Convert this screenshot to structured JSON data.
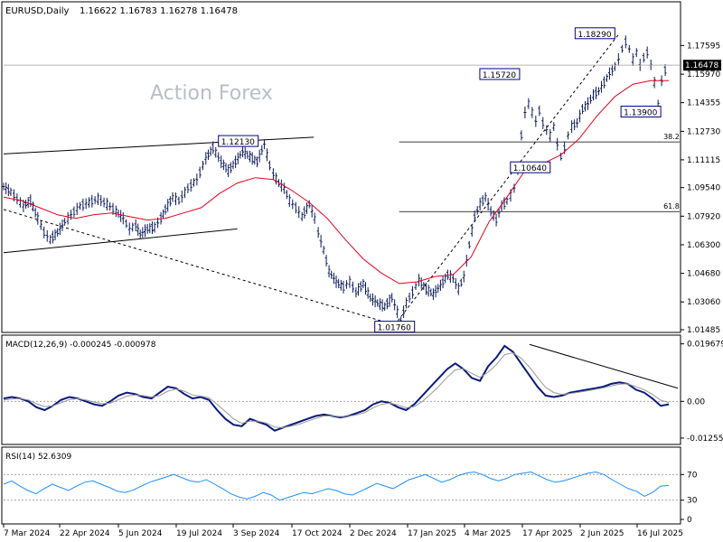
{
  "header": {
    "symbol": "EURUSD,Daily",
    "ohlc": "1.16622 1.16783 1.16278 1.16478"
  },
  "watermark": "Action Forex",
  "chart_data": [
    {
      "type": "candlestick",
      "title": "EURUSD,Daily 1.16622 1.16783 1.16278 1.16478",
      "ylim": [
        1.01485,
        1.1915
      ],
      "y_ticks": [
        "1.17595",
        "1.15970",
        "1.14355",
        "1.12730",
        "1.11115",
        "1.09540",
        "1.07920",
        "1.06300",
        "1.04680",
        "1.03060",
        "1.01485"
      ],
      "current_price_label": "1.16478",
      "x_ticks": [
        "7 Mar 2024",
        "22 Apr 2024",
        "5 Jun 2024",
        "19 Jul 2024",
        "3 Sep 2024",
        "17 Oct 2024",
        "2 Dec 2024",
        "17 Jan 2025",
        "4 Mar 2025",
        "17 Apr 2025",
        "2 Jun 2025",
        "16 Jul 2025"
      ],
      "price_series": {
        "x": [
          0,
          8,
          15,
          22,
          30,
          38,
          45,
          52,
          60,
          68,
          75,
          85,
          95,
          105,
          115,
          125,
          133,
          140,
          147,
          152,
          160,
          168,
          175,
          180,
          188,
          195,
          205,
          215,
          225,
          233,
          242,
          250,
          258,
          266,
          274,
          282,
          290,
          296,
          300,
          306,
          312,
          318,
          325,
          332,
          340,
          346,
          350,
          356,
          362,
          370,
          378,
          385,
          392,
          400,
          408,
          416,
          424,
          432,
          438,
          442,
          448,
          455,
          462,
          470,
          478,
          486,
          494,
          500,
          506,
          512,
          518,
          524,
          530,
          536,
          542,
          548,
          554,
          560,
          564,
          568,
          572,
          576,
          580,
          584,
          588,
          592,
          596,
          600,
          604,
          608,
          612,
          616,
          620,
          624,
          628,
          632,
          638,
          644,
          650,
          656,
          662,
          668,
          674,
          680,
          684,
          688,
          692,
          696,
          700,
          704,
          708,
          712,
          716,
          720,
          724,
          728,
          732,
          736,
          740
        ],
        "close": [
          1.096,
          1.093,
          1.089,
          1.085,
          1.088,
          1.078,
          1.07,
          1.066,
          1.07,
          1.076,
          1.08,
          1.085,
          1.087,
          1.089,
          1.086,
          1.082,
          1.078,
          1.072,
          1.074,
          1.069,
          1.072,
          1.073,
          1.078,
          1.083,
          1.09,
          1.088,
          1.095,
          1.1,
          1.112,
          1.118,
          1.11,
          1.105,
          1.11,
          1.116,
          1.113,
          1.11,
          1.12,
          1.108,
          1.103,
          1.098,
          1.095,
          1.088,
          1.084,
          1.079,
          1.086,
          1.078,
          1.07,
          1.06,
          1.048,
          1.042,
          1.039,
          1.042,
          1.036,
          1.041,
          1.033,
          1.03,
          1.028,
          1.033,
          1.025,
          1.02,
          1.03,
          1.036,
          1.043,
          1.038,
          1.035,
          1.04,
          1.046,
          1.044,
          1.038,
          1.045,
          1.063,
          1.079,
          1.086,
          1.09,
          1.082,
          1.077,
          1.085,
          1.088,
          1.091,
          1.095,
          1.106,
          1.125,
          1.138,
          1.143,
          1.138,
          1.133,
          1.139,
          1.132,
          1.128,
          1.125,
          1.13,
          1.12,
          1.113,
          1.118,
          1.125,
          1.13,
          1.132,
          1.14,
          1.143,
          1.148,
          1.15,
          1.155,
          1.16,
          1.164,
          1.168,
          1.174,
          1.178,
          1.174,
          1.168,
          1.172,
          1.165,
          1.169,
          1.172,
          1.165,
          1.155,
          1.142,
          1.156,
          1.162,
          1.1648
        ]
      },
      "ma_series": {
        "x": [
          0,
          20,
          40,
          60,
          80,
          100,
          120,
          140,
          160,
          180,
          200,
          220,
          240,
          260,
          280,
          300,
          320,
          340,
          360,
          380,
          400,
          420,
          440,
          460,
          480,
          500,
          520,
          540,
          560,
          580,
          600,
          620,
          640,
          660,
          680,
          700,
          720,
          740
        ],
        "values": [
          1.09,
          1.088,
          1.084,
          1.08,
          1.078,
          1.08,
          1.081,
          1.079,
          1.077,
          1.078,
          1.081,
          1.084,
          1.092,
          1.098,
          1.101,
          1.1,
          1.094,
          1.087,
          1.078,
          1.066,
          1.055,
          1.047,
          1.041,
          1.042,
          1.045,
          1.046,
          1.056,
          1.076,
          1.09,
          1.105,
          1.109,
          1.114,
          1.123,
          1.136,
          1.147,
          1.154,
          1.156,
          1.156
        ]
      },
      "labels": [
        {
          "text": "1.18290",
          "x": 685,
          "price": 1.1829
        },
        {
          "text": "1.15720",
          "x": 575,
          "price": 1.1572
        },
        {
          "text": "1.13900",
          "x": 725,
          "price": 1.139
        },
        {
          "text": "1.12130",
          "x": 245,
          "price": 1.1213
        },
        {
          "text": "1.10640",
          "x": 600,
          "price": 1.1064
        },
        {
          "text": "1.01760",
          "x": 435,
          "price": 1.0176
        }
      ],
      "fibonacci": [
        {
          "text": "38.2",
          "price": 1.1213
        },
        {
          "text": "61.8",
          "price": 1.0818
        }
      ]
    },
    {
      "type": "line",
      "title": "MACD(12,26,9) -0.000245 -0.000978",
      "ylim": [
        -0.0135,
        0.0205
      ],
      "y_ticks": [
        "0.019679",
        "0.00",
        "-0.012552"
      ],
      "y_marker": "0.00",
      "series": [
        {
          "values": [
            0.001,
            0.0015,
            0.001,
            0.0,
            -0.002,
            -0.003,
            -0.0015,
            0.0005,
            0.0015,
            0.001,
            0.0,
            -0.001,
            -0.0015,
            0.0,
            0.002,
            0.003,
            0.0025,
            0.0015,
            0.001,
            0.003,
            0.005,
            0.0045,
            0.0025,
            0.001,
            0.0015,
            0.0005,
            -0.003,
            -0.006,
            -0.008,
            -0.0085,
            -0.006,
            -0.007,
            -0.008,
            -0.01,
            -0.009,
            -0.008,
            -0.007,
            -0.006,
            -0.005,
            -0.0045,
            -0.005,
            -0.0055,
            -0.005,
            -0.004,
            -0.003,
            -0.001,
            0.0,
            -0.0005,
            -0.002,
            -0.003,
            -0.001,
            0.002,
            0.005,
            0.008,
            0.011,
            0.013,
            0.011,
            0.008,
            0.007,
            0.012,
            0.015,
            0.019,
            0.017,
            0.013,
            0.009,
            0.005,
            0.002,
            0.0015,
            0.002,
            0.003,
            0.0035,
            0.004,
            0.0045,
            0.005,
            0.006,
            0.0065,
            0.006,
            0.004,
            0.003,
            0.001,
            -0.0015,
            -0.001
          ]
        },
        {
          "values": [
            0.0005,
            0.0008,
            0.001,
            0.0005,
            -0.0008,
            -0.0018,
            -0.0015,
            -0.0005,
            0.0006,
            0.0009,
            0.0005,
            -0.0002,
            -0.0008,
            -0.0006,
            0.0006,
            0.0018,
            0.0022,
            0.002,
            0.0015,
            0.002,
            0.0035,
            0.0042,
            0.0035,
            0.0022,
            0.0018,
            0.0012,
            -0.001,
            -0.0035,
            -0.006,
            -0.0075,
            -0.0068,
            -0.0068,
            -0.0074,
            -0.0088,
            -0.009,
            -0.0085,
            -0.0078,
            -0.0068,
            -0.0058,
            -0.005,
            -0.005,
            -0.0052,
            -0.0051,
            -0.0046,
            -0.0038,
            -0.0022,
            -0.001,
            -0.0006,
            -0.0012,
            -0.0022,
            -0.0018,
            0.0,
            0.0025,
            0.0052,
            0.0082,
            0.0108,
            0.0112,
            0.0096,
            0.0082,
            0.01,
            0.0126,
            0.016,
            0.0166,
            0.0148,
            0.0118,
            0.0082,
            0.0048,
            0.003,
            0.0024,
            0.0027,
            0.0031,
            0.0036,
            0.0041,
            0.0046,
            0.0053,
            0.0059,
            0.006,
            0.005,
            0.004,
            0.0024,
            0.0004,
            -0.0004
          ]
        }
      ]
    },
    {
      "type": "line",
      "title": "RSI(14) 52.6309",
      "ylim": [
        0,
        100
      ],
      "y_ticks": [
        "70",
        "30",
        "0"
      ],
      "levels": [
        70,
        30
      ],
      "series": [
        {
          "values": [
            55,
            60,
            52,
            45,
            40,
            48,
            55,
            50,
            45,
            52,
            58,
            60,
            55,
            50,
            44,
            42,
            46,
            52,
            58,
            62,
            66,
            70,
            65,
            60,
            58,
            62,
            55,
            48,
            40,
            35,
            32,
            36,
            42,
            38,
            30,
            34,
            38,
            42,
            40,
            44,
            48,
            45,
            40,
            38,
            44,
            50,
            56,
            52,
            48,
            55,
            62,
            66,
            70,
            64,
            58,
            62,
            68,
            72,
            74,
            70,
            64,
            60,
            64,
            70,
            72,
            74,
            68,
            62,
            58,
            60,
            64,
            68,
            72,
            74,
            70,
            62,
            55,
            48,
            44,
            36,
            42,
            52,
            53
          ]
        }
      ]
    }
  ]
}
